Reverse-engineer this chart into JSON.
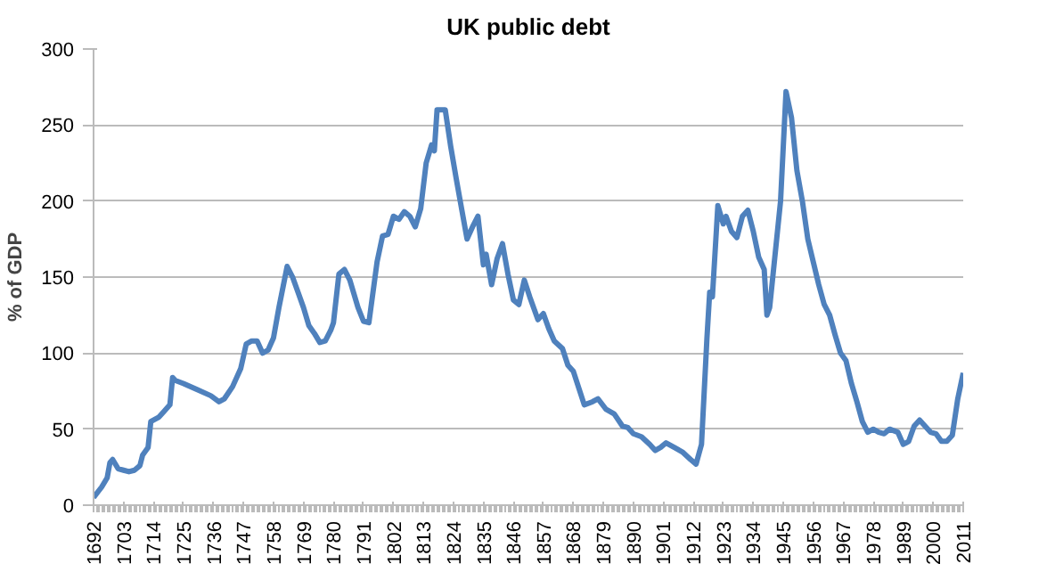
{
  "chart_data": {
    "type": "line",
    "title": "UK public debt",
    "ylabel": "% of GDP",
    "x": [
      1692,
      1695,
      1697,
      1698,
      1699,
      1701,
      1703,
      1705,
      1707,
      1709,
      1710,
      1712,
      1713,
      1716,
      1718,
      1720,
      1721,
      1722,
      1725,
      1730,
      1735,
      1738,
      1740,
      1743,
      1746,
      1748,
      1750,
      1752,
      1754,
      1756,
      1758,
      1760,
      1763,
      1765,
      1767,
      1769,
      1771,
      1773,
      1775,
      1777,
      1779,
      1780,
      1782,
      1784,
      1786,
      1789,
      1791,
      1793,
      1796,
      1798,
      1800,
      1802,
      1804,
      1806,
      1808,
      1810,
      1812,
      1814,
      1816,
      1817,
      1818,
      1821,
      1823,
      1825,
      1827,
      1829,
      1831,
      1833,
      1835,
      1836,
      1838,
      1840,
      1842,
      1844,
      1846,
      1848,
      1850,
      1852,
      1855,
      1857,
      1859,
      1861,
      1864,
      1866,
      1868,
      1870,
      1872,
      1875,
      1877,
      1880,
      1883,
      1886,
      1888,
      1890,
      1893,
      1896,
      1898,
      1900,
      1902,
      1905,
      1908,
      1911,
      1913,
      1915,
      1917,
      1918,
      1919,
      1921,
      1923,
      1924,
      1926,
      1928,
      1930,
      1932,
      1934,
      1936,
      1938,
      1939,
      1940,
      1942,
      1944,
      1946,
      1948,
      1950,
      1952,
      1954,
      1956,
      1958,
      1960,
      1962,
      1964,
      1966,
      1968,
      1970,
      1972,
      1974,
      1976,
      1978,
      1980,
      1982,
      1984,
      1987,
      1989,
      1991,
      1993,
      1995,
      1997,
      1999,
      2001,
      2003,
      2005,
      2007,
      2009,
      2011
    ],
    "series": [
      {
        "color": "#4f81bd",
        "values": [
          5,
          12,
          18,
          28,
          30,
          24,
          23,
          22,
          23,
          26,
          33,
          38,
          55,
          58,
          62,
          66,
          84,
          82,
          80,
          76,
          72,
          68,
          70,
          78,
          90,
          106,
          108,
          108,
          100,
          102,
          110,
          130,
          157,
          150,
          140,
          130,
          118,
          113,
          107,
          108,
          115,
          120,
          152,
          155,
          148,
          130,
          121,
          120,
          160,
          177,
          178,
          190,
          188,
          193,
          190,
          183,
          195,
          225,
          237,
          233,
          260,
          260,
          236,
          215,
          195,
          175,
          183,
          190,
          158,
          165,
          145,
          162,
          172,
          152,
          135,
          132,
          148,
          137,
          122,
          126,
          116,
          108,
          103,
          92,
          88,
          77,
          66,
          68,
          70,
          63,
          60,
          52,
          51,
          47,
          45,
          40,
          36,
          38,
          41,
          38,
          35,
          30,
          27,
          40,
          110,
          140,
          137,
          197,
          185,
          190,
          180,
          176,
          190,
          194,
          180,
          163,
          155,
          125,
          130,
          165,
          200,
          272,
          255,
          220,
          200,
          175,
          160,
          145,
          132,
          125,
          112,
          100,
          95,
          80,
          68,
          55,
          48,
          50,
          48,
          47,
          50,
          48,
          40,
          42,
          52,
          56,
          52,
          48,
          47,
          42,
          42,
          46,
          70,
          87
        ]
      }
    ],
    "xlim": [
      1692,
      2011
    ],
    "xticks": [
      1692,
      1703,
      1714,
      1725,
      1736,
      1747,
      1758,
      1769,
      1780,
      1791,
      1802,
      1813,
      1824,
      1835,
      1846,
      1857,
      1868,
      1879,
      1890,
      1901,
      1912,
      1923,
      1934,
      1945,
      1956,
      1967,
      1978,
      1989,
      2000,
      2011
    ],
    "ylim": [
      0,
      300
    ],
    "yticks": [
      0,
      50,
      100,
      150,
      200,
      250,
      300
    ],
    "grid": "y"
  }
}
